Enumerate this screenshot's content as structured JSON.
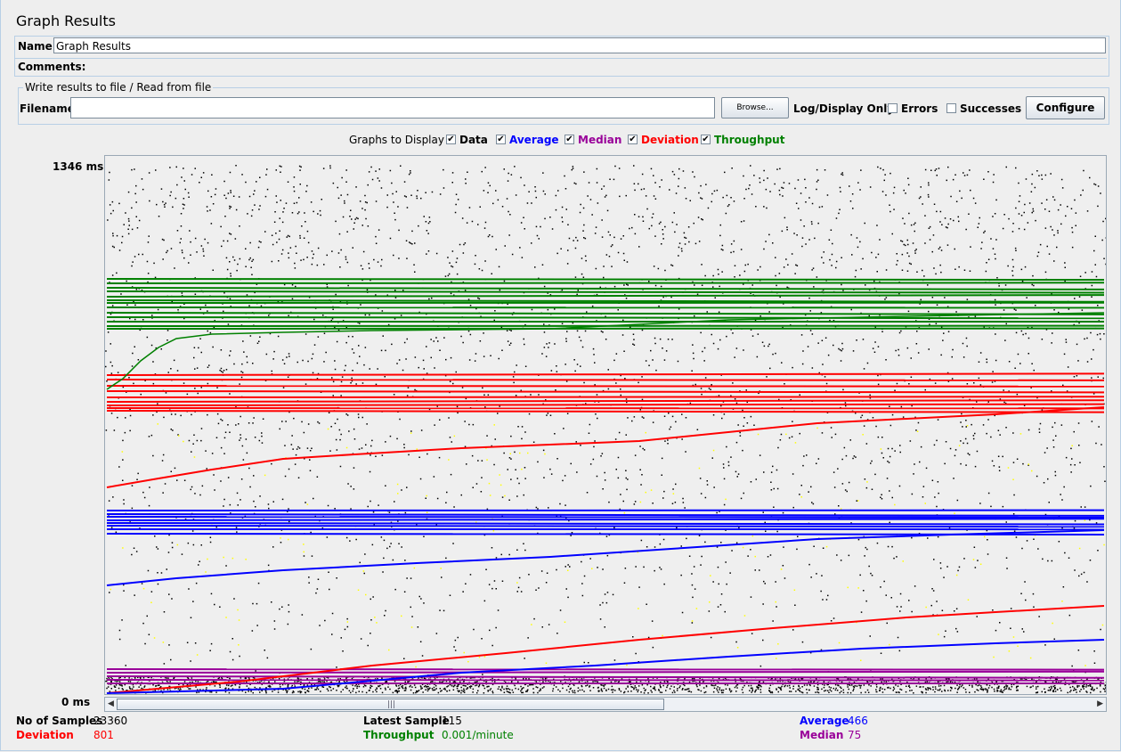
{
  "window": {
    "title": "Graph Results"
  },
  "form": {
    "name_label": "Name:",
    "name_value": "Graph Results",
    "comments_label": "Comments:"
  },
  "file_panel": {
    "title": "Write results to file / Read from file",
    "filename_label": "Filename",
    "filename_value": "",
    "browse_label": "Browse...",
    "log_display_label": "Log/Display Only:",
    "errors_label": "Errors",
    "successes_label": "Successes",
    "configure_label": "Configure"
  },
  "graphs_to_display": {
    "label": "Graphs to Display",
    "options": [
      {
        "label": "Data",
        "checked": true,
        "color": "#000000"
      },
      {
        "label": "Average",
        "checked": true,
        "color": "#0000ff"
      },
      {
        "label": "Median",
        "checked": true,
        "color": "#990099"
      },
      {
        "label": "Deviation",
        "checked": true,
        "color": "#ff0000"
      },
      {
        "label": "Throughput",
        "checked": true,
        "color": "#008000"
      }
    ]
  },
  "graph": {
    "y_max_label": "1346  ms",
    "y_min_label": "0  ms"
  },
  "stats": {
    "samples_label": "No of Samples",
    "samples_value": "23360",
    "latest_label": "Latest Sample",
    "latest_value": "115",
    "average_label": "Average",
    "average_value": "466",
    "deviation_label": "Deviation",
    "deviation_value": "801",
    "throughput_label": "Throughput",
    "throughput_value": "0.001/minute",
    "median_label": "Median",
    "median_value": "75"
  },
  "colors": {
    "average": "#0000ff",
    "median": "#990099",
    "deviation": "#ff0000",
    "throughput": "#008000",
    "data": "#000000"
  }
}
